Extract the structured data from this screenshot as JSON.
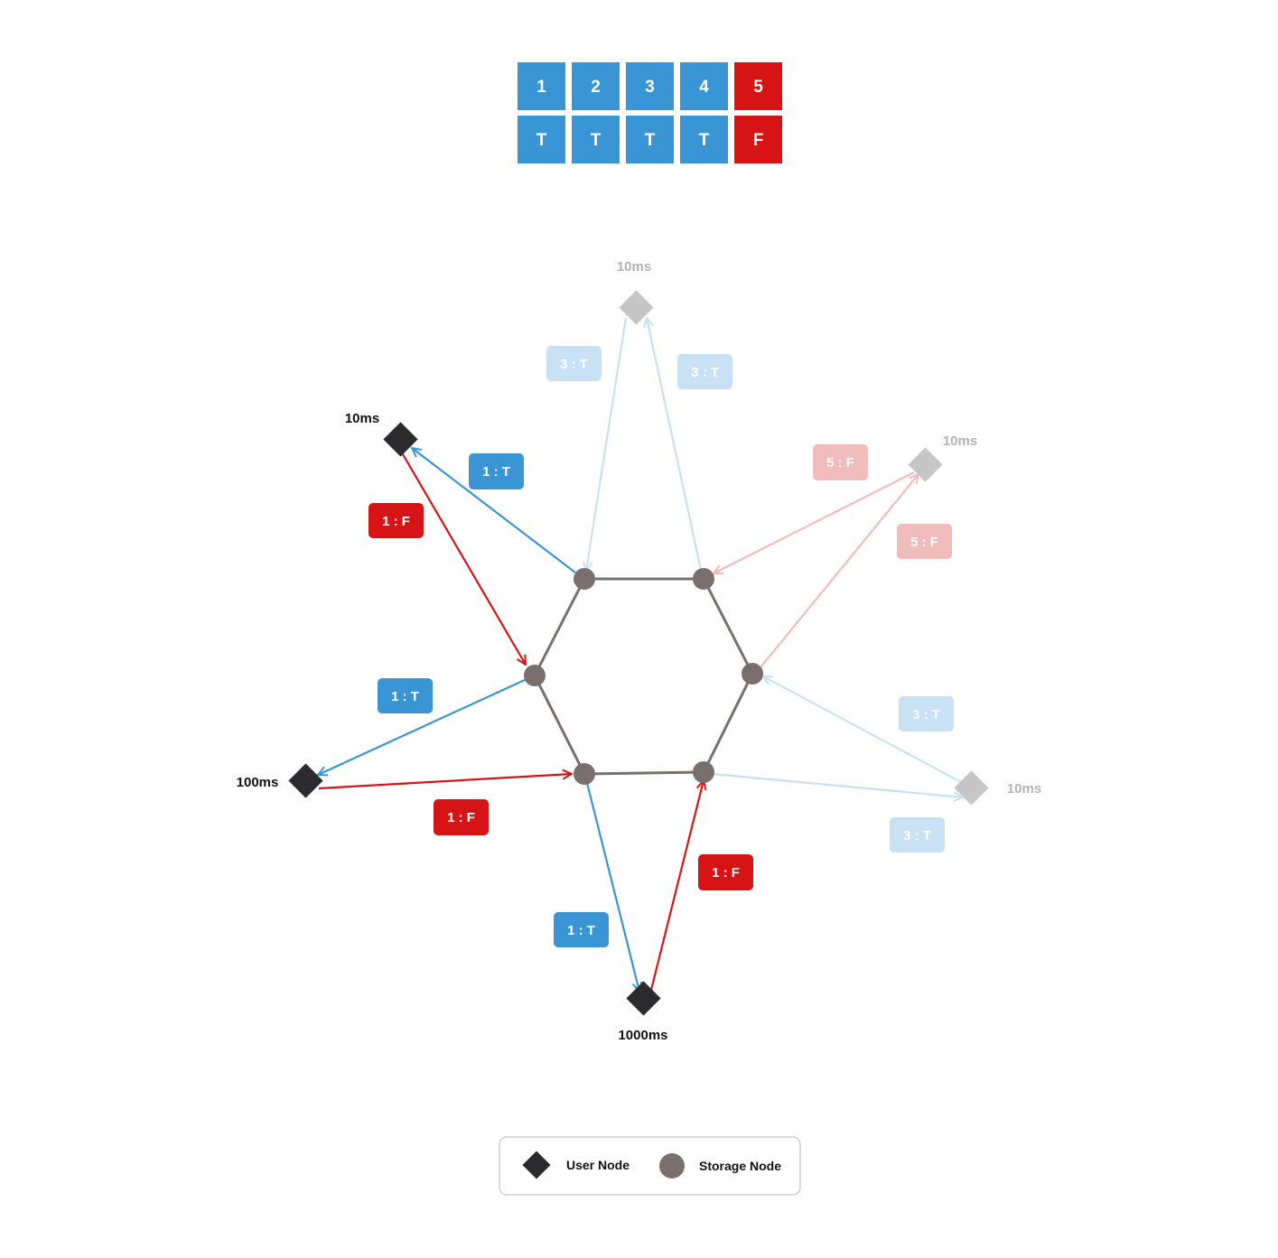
{
  "colors": {
    "blue": "#3a95d5",
    "red": "#d61416",
    "light_blue": "#c9e1f4",
    "light_red": "#f1bcbc",
    "user_dark": "#2b2b2d",
    "user_faded": "#c6c6c6",
    "storage": "#7a6e6f",
    "edge": "#7a6e6f",
    "text_dark": "#111111",
    "text_faded": "#b3b3b3"
  },
  "table": {
    "ids": [
      "1",
      "2",
      "3",
      "4",
      "5"
    ],
    "values": [
      "T",
      "T",
      "T",
      "T",
      "F"
    ],
    "states": [
      "ok",
      "ok",
      "ok",
      "ok",
      "fail"
    ]
  },
  "user_nodes": [
    {
      "id": "u_top",
      "latency": "10ms",
      "faded": true
    },
    {
      "id": "u_upper_left",
      "latency": "10ms",
      "faded": false
    },
    {
      "id": "u_upper_right",
      "latency": "10ms",
      "faded": true
    },
    {
      "id": "u_left",
      "latency": "100ms",
      "faded": false
    },
    {
      "id": "u_right",
      "latency": "10ms",
      "faded": true
    },
    {
      "id": "u_bottom",
      "latency": "1000ms",
      "faded": false
    }
  ],
  "message_labels": [
    {
      "text": "3 : T",
      "style": "light_blue"
    },
    {
      "text": "3 : T",
      "style": "light_blue"
    },
    {
      "text": "1 : T",
      "style": "blue"
    },
    {
      "text": "1 : F",
      "style": "red"
    },
    {
      "text": "5 : F",
      "style": "light_red"
    },
    {
      "text": "5 : F",
      "style": "light_red"
    },
    {
      "text": "1 : T",
      "style": "blue"
    },
    {
      "text": "3 : T",
      "style": "light_blue"
    },
    {
      "text": "1 : F",
      "style": "red"
    },
    {
      "text": "3 : T",
      "style": "light_blue"
    },
    {
      "text": "1 : F",
      "style": "red"
    },
    {
      "text": "1 : T",
      "style": "blue"
    }
  ],
  "legend": {
    "user_node": "User Node",
    "storage_node": "Storage Node"
  }
}
